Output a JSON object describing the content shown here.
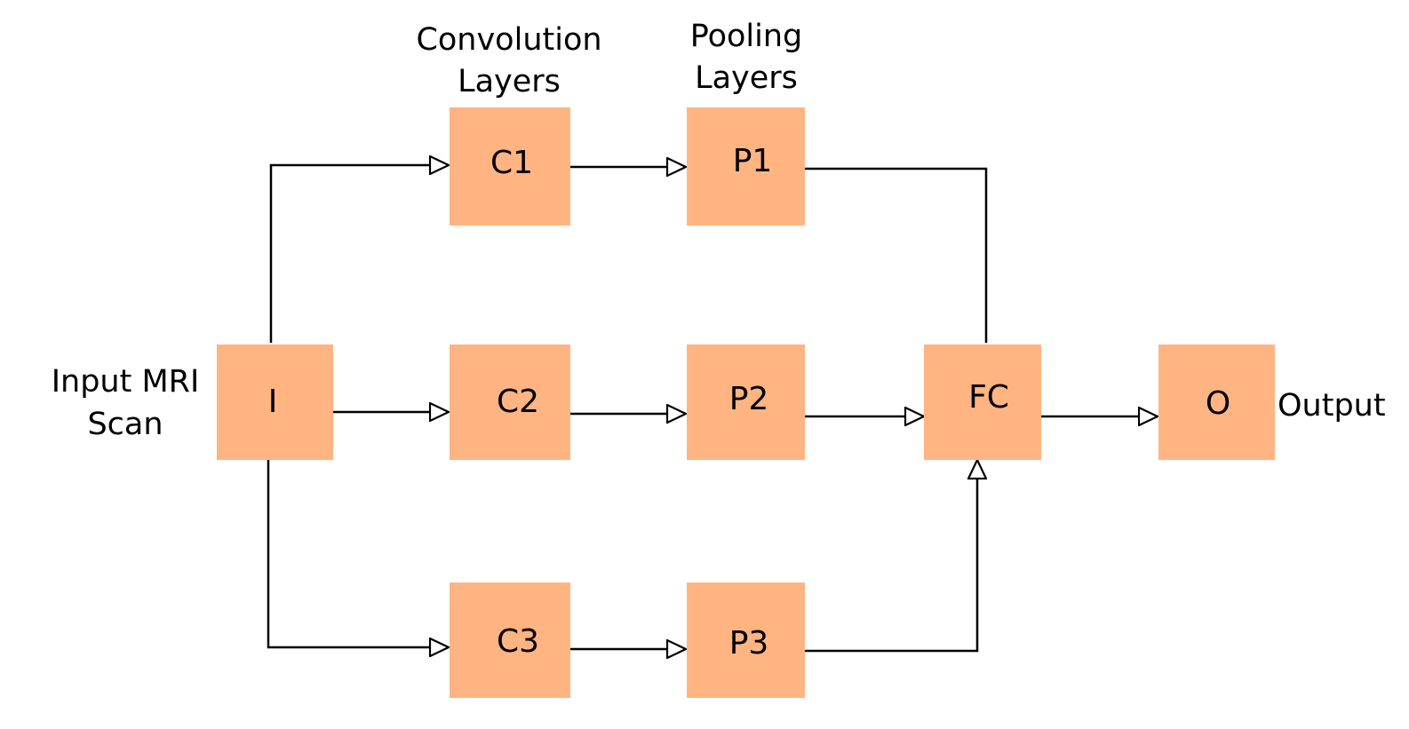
{
  "colors": {
    "node_fill": "#FFB482",
    "line": "#000000",
    "arrowhead_fill": "#FFFFFF"
  },
  "annotations": {
    "conv_line1": "Convolution",
    "conv_line2": "Layers",
    "pool_line1": "Pooling",
    "pool_line2": "Layers",
    "input_line1": "Input MRI",
    "input_line2": "Scan",
    "output": "Output"
  },
  "nodes": {
    "input": "I",
    "c1": "C1",
    "c2": "C2",
    "c3": "C3",
    "p1": "P1",
    "p2": "P2",
    "p3": "P3",
    "fc": "FC",
    "out": "O"
  },
  "edges": [
    {
      "from": "input",
      "to": "c1"
    },
    {
      "from": "input",
      "to": "c2"
    },
    {
      "from": "input",
      "to": "c3"
    },
    {
      "from": "c1",
      "to": "p1"
    },
    {
      "from": "c2",
      "to": "p2"
    },
    {
      "from": "c3",
      "to": "p3"
    },
    {
      "from": "p1",
      "to": "fc"
    },
    {
      "from": "p2",
      "to": "fc"
    },
    {
      "from": "p3",
      "to": "fc"
    },
    {
      "from": "fc",
      "to": "out"
    }
  ]
}
